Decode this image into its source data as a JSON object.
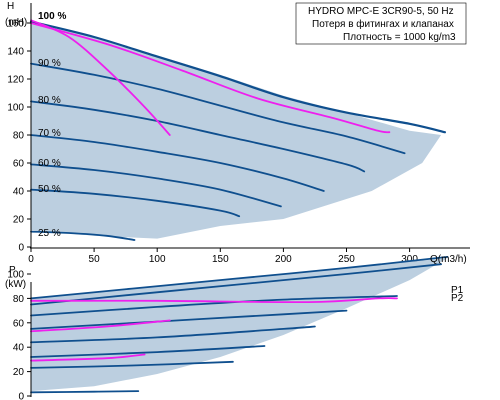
{
  "info": {
    "title": "HYDRO MPC-E 3CR90-5, 50 Hz",
    "line1": "Потеря в фитингах и клапанах",
    "line2": "Плотность = 1000 kg/m3"
  },
  "colors": {
    "envelope": "#bccfe0",
    "curve": "#0f4f8e",
    "system": "#ee1fee",
    "axis": "#000000"
  },
  "chart_data": [
    {
      "type": "line",
      "xlabel": "Q(m3/h)",
      "ylabel_top": "H",
      "ylabel_unit": "(mH)",
      "xlim": [
        0,
        330
      ],
      "ylim": [
        0,
        170
      ],
      "xticks": [
        0,
        50,
        100,
        150,
        200,
        250,
        300
      ],
      "yticks": [
        0,
        20,
        40,
        60,
        80,
        100,
        120,
        140,
        160
      ],
      "envelope": [
        [
          0,
          160
        ],
        [
          40,
          152
        ],
        [
          100,
          137
        ],
        [
          150,
          123
        ],
        [
          200,
          108
        ],
        [
          250,
          96
        ],
        [
          300,
          83
        ],
        [
          325,
          80
        ],
        [
          310,
          60
        ],
        [
          270,
          40
        ],
        [
          200,
          20
        ],
        [
          150,
          15
        ],
        [
          100,
          6
        ],
        [
          50,
          8
        ],
        [
          0,
          12
        ]
      ],
      "speed_curves": [
        {
          "label": "100 %",
          "bold": true,
          "points": [
            [
              0,
              161
            ],
            [
              50,
              150
            ],
            [
              100,
              136
            ],
            [
              150,
              122
            ],
            [
              200,
              107
            ],
            [
              250,
              96
            ],
            [
              300,
              88
            ],
            [
              328,
              82
            ]
          ]
        },
        {
          "label": "90 %",
          "bold": false,
          "points": [
            [
              0,
              131
            ],
            [
              50,
              123
            ],
            [
              100,
              113
            ],
            [
              150,
              101
            ],
            [
              200,
              89
            ],
            [
              250,
              79
            ],
            [
              296,
              67
            ]
          ]
        },
        {
          "label": "80 %",
          "bold": false,
          "points": [
            [
              0,
              104
            ],
            [
              50,
              98
            ],
            [
              100,
              90
            ],
            [
              150,
              80
            ],
            [
              200,
              70
            ],
            [
              250,
              59
            ],
            [
              264,
              54
            ]
          ]
        },
        {
          "label": "70 %",
          "bold": false,
          "points": [
            [
              0,
              80
            ],
            [
              50,
              75
            ],
            [
              100,
              68
            ],
            [
              150,
              60
            ],
            [
              200,
              49
            ],
            [
              232,
              40
            ]
          ]
        },
        {
          "label": "60 %",
          "bold": false,
          "points": [
            [
              0,
              59
            ],
            [
              50,
              55
            ],
            [
              100,
              49
            ],
            [
              150,
              41
            ],
            [
              198,
              29
            ]
          ]
        },
        {
          "label": "50 %",
          "bold": false,
          "points": [
            [
              0,
              41
            ],
            [
              50,
              38
            ],
            [
              100,
              33
            ],
            [
              150,
              26
            ],
            [
              165,
              22
            ]
          ]
        },
        {
          "label": "25 %",
          "bold": false,
          "points": [
            [
              0,
              11
            ],
            [
              30,
              10
            ],
            [
              60,
              8
            ],
            [
              82,
              5
            ]
          ]
        }
      ],
      "system_curves": [
        [
          [
            0,
            162
          ],
          [
            30,
            150
          ],
          [
            60,
            127
          ],
          [
            90,
            100
          ],
          [
            110,
            80
          ]
        ],
        [
          [
            0,
            160
          ],
          [
            60,
            145
          ],
          [
            120,
            126
          ],
          [
            180,
            106
          ],
          [
            240,
            92
          ],
          [
            275,
            83
          ],
          [
            284,
            82
          ]
        ]
      ]
    },
    {
      "type": "line",
      "ylabel_top": "P",
      "ylabel_unit": "(kW)",
      "xlim": [
        0,
        330
      ],
      "ylim": [
        0,
        120
      ],
      "yticks": [
        0,
        20,
        40,
        60,
        80,
        100
      ],
      "envelope": [
        [
          0,
          80
        ],
        [
          80,
          88
        ],
        [
          160,
          96
        ],
        [
          250,
          105
        ],
        [
          330,
          113
        ],
        [
          330,
          113
        ],
        [
          300,
          95
        ],
        [
          250,
          72
        ],
        [
          200,
          50
        ],
        [
          150,
          32
        ],
        [
          100,
          18
        ],
        [
          50,
          8
        ],
        [
          0,
          4
        ]
      ],
      "series": [
        {
          "name": "P1",
          "points": [
            [
              0,
              80
            ],
            [
              80,
              88
            ],
            [
              160,
              96
            ],
            [
              250,
              105
            ],
            [
              330,
              114
            ]
          ]
        },
        {
          "name": "P2",
          "points": [
            [
              0,
              75
            ],
            [
              80,
              83
            ],
            [
              160,
              91
            ],
            [
              250,
              100
            ],
            [
              325,
              108
            ]
          ]
        },
        {
          "name": "",
          "points": [
            [
              0,
              66
            ],
            [
              100,
              73
            ],
            [
              200,
              79
            ],
            [
              290,
              82
            ]
          ]
        },
        {
          "name": "",
          "points": [
            [
              0,
              55
            ],
            [
              100,
              61
            ],
            [
              200,
              67
            ],
            [
              250,
              70
            ]
          ]
        },
        {
          "name": "",
          "points": [
            [
              0,
              44
            ],
            [
              100,
              48
            ],
            [
              200,
              55
            ],
            [
              225,
              57
            ]
          ]
        },
        {
          "name": "",
          "points": [
            [
              0,
              32
            ],
            [
              100,
              36
            ],
            [
              185,
              41
            ]
          ]
        },
        {
          "name": "",
          "points": [
            [
              0,
              23
            ],
            [
              80,
              25
            ],
            [
              160,
              28
            ]
          ]
        },
        {
          "name": "",
          "points": [
            [
              0,
              3
            ],
            [
              50,
              3.5
            ],
            [
              85,
              4
            ]
          ]
        }
      ],
      "system_curves": [
        [
          [
            0,
            53
          ],
          [
            60,
            57
          ],
          [
            110,
            62
          ]
        ],
        [
          [
            0,
            78
          ],
          [
            100,
            78
          ],
          [
            220,
            77
          ],
          [
            275,
            80
          ],
          [
            290,
            80
          ]
        ],
        [
          [
            0,
            29
          ],
          [
            60,
            31
          ],
          [
            90,
            34
          ]
        ]
      ],
      "series_labels": [
        "P1",
        "P2"
      ]
    }
  ]
}
